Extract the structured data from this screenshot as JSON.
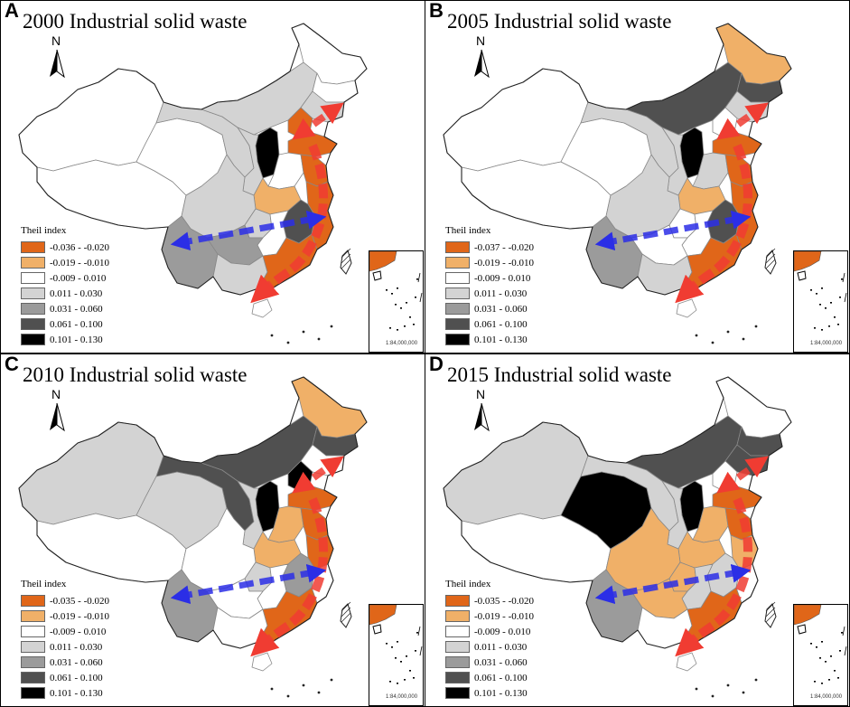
{
  "panels": [
    {
      "letter": "A",
      "title": "2000 Industrial solid waste",
      "legend_ranges": [
        "-0.036 - -0.020",
        "-0.019 - -0.010",
        "-0.009 - 0.010",
        "0.011 - 0.030",
        "0.031 - 0.060",
        "0.061 - 0.100",
        "0.101 - 0.130"
      ],
      "regions": {
        "xinjiang": 2,
        "tibet": 2,
        "qinghai": 2,
        "gansu": 3,
        "inner_mongolia": 3,
        "heilongjiang": 2,
        "jilin": 2,
        "liaoning": 3,
        "beijing": 0,
        "shandong": 0,
        "shanxi": 6,
        "shaanxi": 3,
        "henan": 2,
        "hubei": 1,
        "sichuan": 3,
        "chongqing": 3,
        "yunnan": 4,
        "guizhou": 4,
        "guangxi": 3,
        "guangdong": 0,
        "fujian": 0,
        "jiangxi": 5,
        "hunan": 2,
        "jiangsu": 0,
        "zhejiang": 0,
        "hainan": 2
      },
      "blue_arrow": true
    },
    {
      "letter": "B",
      "title": "2005 Industrial solid waste",
      "legend_ranges": [
        "-0.037 - -0.020",
        "-0.019 - -0.010",
        "-0.009 - 0.010",
        "0.011 - 0.030",
        "0.031 - 0.060",
        "0.061 - 0.100",
        "0.101 - 0.130"
      ],
      "regions": {
        "xinjiang": 2,
        "tibet": 2,
        "qinghai": 2,
        "gansu": 3,
        "inner_mongolia": 5,
        "heilongjiang": 1,
        "jilin": 5,
        "liaoning": 3,
        "beijing": 2,
        "shandong": 0,
        "shanxi": 6,
        "shaanxi": 3,
        "henan": 3,
        "hubei": 1,
        "sichuan": 3,
        "chongqing": 2,
        "yunnan": 4,
        "guizhou": 2,
        "guangxi": 3,
        "guangdong": 0,
        "fujian": 0,
        "jiangxi": 5,
        "hunan": 2,
        "jiangsu": 0,
        "zhejiang": 0,
        "hainan": 2
      },
      "blue_arrow": true
    },
    {
      "letter": "C",
      "title": "2010 Industrial solid waste",
      "legend_ranges": [
        "-0.035 - -0.020",
        "-0.019 - -0.010",
        "-0.009 - 0.010",
        "0.011 - 0.030",
        "0.031 - 0.060",
        "0.061 - 0.100",
        "0.101 - 0.130"
      ],
      "regions": {
        "xinjiang": 3,
        "tibet": 2,
        "qinghai": 3,
        "gansu": 5,
        "inner_mongolia": 5,
        "heilongjiang": 1,
        "jilin": 5,
        "liaoning": 2,
        "beijing": 6,
        "shandong": 0,
        "shanxi": 6,
        "shaanxi": 3,
        "henan": 1,
        "hubei": 1,
        "sichuan": 2,
        "chongqing": 3,
        "yunnan": 4,
        "guizhou": 2,
        "guangxi": 2,
        "guangdong": 0,
        "fujian": 2,
        "jiangxi": 4,
        "hunan": 2,
        "jiangsu": 0,
        "zhejiang": 0,
        "hainan": 2
      },
      "blue_arrow": true
    },
    {
      "letter": "D",
      "title": "2015 Industrial solid waste",
      "legend_ranges": [
        "-0.035 - -0.020",
        "-0.019 - -0.010",
        "-0.009 - 0.010",
        "0.011 - 0.030",
        "0.031 - 0.060",
        "0.061 - 0.100",
        "0.101 - 0.130"
      ],
      "regions": {
        "xinjiang": 3,
        "tibet": 2,
        "qinghai": 6,
        "gansu": 3,
        "inner_mongolia": 5,
        "heilongjiang": 2,
        "jilin": 5,
        "liaoning": 5,
        "beijing": 2,
        "shandong": 0,
        "shanxi": 6,
        "shaanxi": 3,
        "henan": 1,
        "hubei": 1,
        "sichuan": 1,
        "chongqing": 1,
        "yunnan": 4,
        "guizhou": 1,
        "guangxi": 2,
        "guangdong": 0,
        "fujian": 2,
        "jiangxi": 3,
        "hunan": 3,
        "jiangsu": 0,
        "zhejiang": 1,
        "hainan": 2
      },
      "blue_arrow": true
    }
  ],
  "legend_title": "Theil index",
  "legend_colors": [
    "#e06619",
    "#f0b068",
    "#ffffff",
    "#d3d3d3",
    "#9b9b9b",
    "#505050",
    "#000000"
  ],
  "north_label": "N",
  "inset_scale": "1:84,000,000",
  "arrow_colors": {
    "red": "#f03c32",
    "blue": "#2b2ee6"
  }
}
